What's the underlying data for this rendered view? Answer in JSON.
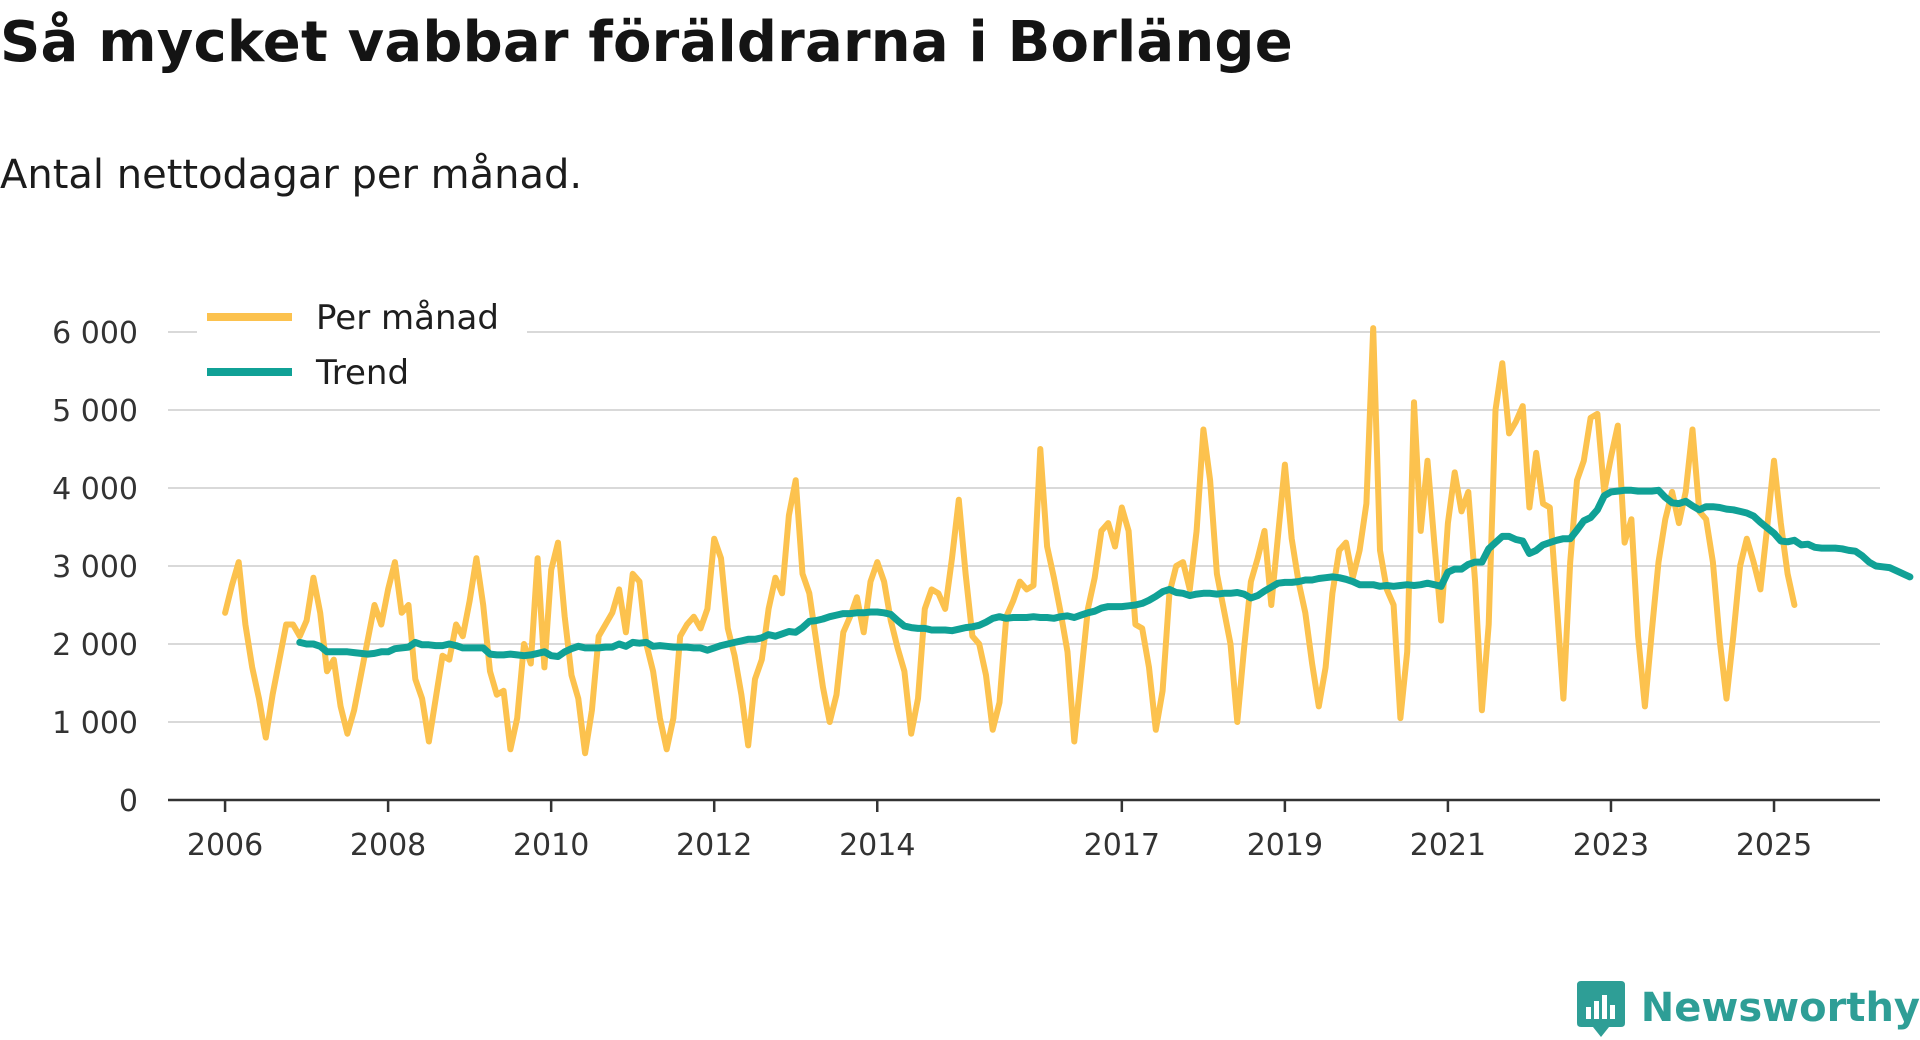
{
  "title": "Så mycket vabbar föräldrarna i Borlänge",
  "subtitle": "Antal nettodagar per månad.",
  "branding": {
    "name": "Newsworthy",
    "icon": "newsworthy-logo-icon",
    "color": "#2e9e96"
  },
  "colors": {
    "per_month": "#fcc24e",
    "trend": "#10a196",
    "grid": "#d9d9d9",
    "axis": "#333333"
  },
  "chart_data": {
    "type": "line",
    "title": "Så mycket vabbar föräldrarna i Borlänge",
    "subtitle": "Antal nettodagar per månad.",
    "xlabel": "",
    "ylabel": "",
    "ylim": [
      0,
      6000
    ],
    "xlim": [
      2005.3,
      2026.3
    ],
    "grid": true,
    "legend_position": "top-left",
    "y_ticks": [
      {
        "value": 0,
        "label": "0"
      },
      {
        "value": 1000,
        "label": "1 000"
      },
      {
        "value": 2000,
        "label": "2 000"
      },
      {
        "value": 3000,
        "label": "3 000"
      },
      {
        "value": 4000,
        "label": "4 000"
      },
      {
        "value": 5000,
        "label": "5 000"
      },
      {
        "value": 6000,
        "label": "6 000"
      }
    ],
    "x_ticks": [
      {
        "value": 2006,
        "label": "2006"
      },
      {
        "value": 2008,
        "label": "2008"
      },
      {
        "value": 2010,
        "label": "2010"
      },
      {
        "value": 2012,
        "label": "2012"
      },
      {
        "value": 2014,
        "label": "2014"
      },
      {
        "value": 2017,
        "label": "2017"
      },
      {
        "value": 2019,
        "label": "2019"
      },
      {
        "value": 2021,
        "label": "2021"
      },
      {
        "value": 2023,
        "label": "2023"
      },
      {
        "value": 2025,
        "label": "2025"
      }
    ],
    "series": [
      {
        "name": "Per månad",
        "key": "per_month",
        "start": 2006.0,
        "step": 0.0833333,
        "values": [
          2400,
          2750,
          3050,
          2250,
          1700,
          1300,
          800,
          1350,
          1800,
          2250,
          2250,
          2100,
          2300,
          2850,
          2400,
          1650,
          1800,
          1200,
          850,
          1150,
          1600,
          2050,
          2500,
          2250,
          2700,
          3050,
          2400,
          2500,
          1550,
          1300,
          750,
          1300,
          1850,
          1800,
          2250,
          2100,
          2550,
          3100,
          2500,
          1650,
          1350,
          1400,
          650,
          1050,
          2000,
          1750,
          3100,
          1700,
          2950,
          3300,
          2350,
          1600,
          1300,
          600,
          1150,
          2100,
          2250,
          2400,
          2700,
          2150,
          2900,
          2800,
          2000,
          1650,
          1050,
          650,
          1050,
          2100,
          2250,
          2350,
          2200,
          2450,
          3350,
          3100,
          2200,
          1850,
          1350,
          700,
          1550,
          1800,
          2450,
          2850,
          2650,
          3650,
          4100,
          2900,
          2650,
          2050,
          1450,
          1000,
          1350,
          2150,
          2350,
          2600,
          2150,
          2800,
          3050,
          2800,
          2300,
          1950,
          1650,
          850,
          1300,
          2450,
          2700,
          2650,
          2450,
          3100,
          3850,
          2900,
          2100,
          2000,
          1600,
          900,
          1250,
          2350,
          2550,
          2800,
          2700,
          2750,
          4500,
          3250,
          2850,
          2400,
          1900,
          750,
          1600,
          2450,
          2850,
          3450,
          3550,
          3250,
          3750,
          3450,
          2250,
          2200,
          1700,
          900,
          1400,
          2650,
          3000,
          3050,
          2700,
          3450,
          4750,
          4100,
          2900,
          2450,
          2000,
          1000,
          1950,
          2800,
          3100,
          3450,
          2500,
          3400,
          4300,
          3350,
          2800,
          2400,
          1750,
          1200,
          1700,
          2650,
          3200,
          3300,
          2850,
          3200,
          3800,
          6050,
          3200,
          2700,
          2500,
          1050,
          1900,
          5100,
          3450,
          4350,
          3300,
          2300,
          3550,
          4200,
          3700,
          3950,
          2800,
          1150,
          2250,
          5000,
          5600,
          4700,
          4850,
          5050,
          3750,
          4450,
          3800,
          3750,
          2550,
          1300,
          3050,
          4100,
          4350,
          4900,
          4950,
          3950,
          4400,
          4800,
          3300,
          3600,
          2100,
          1200,
          2150,
          3050,
          3600,
          3950,
          3550,
          3950,
          4750,
          3700,
          3600,
          3050,
          2050,
          1300,
          2100,
          3000,
          3350,
          3050,
          2700,
          3500,
          4350,
          3550,
          2900,
          2500
        ]
      },
      {
        "name": "Trend",
        "key": "trend",
        "start": 2006.9167,
        "step": 0.0833333,
        "values": [
          2020,
          2000,
          2000,
          1970,
          1900,
          1900,
          1900,
          1900,
          1890,
          1880,
          1870,
          1880,
          1900,
          1900,
          1940,
          1950,
          1960,
          2020,
          1990,
          1990,
          1980,
          1980,
          2000,
          1980,
          1950,
          1950,
          1950,
          1950,
          1870,
          1860,
          1860,
          1870,
          1860,
          1850,
          1860,
          1880,
          1900,
          1850,
          1840,
          1900,
          1940,
          1970,
          1950,
          1950,
          1950,
          1960,
          1960,
          2000,
          1970,
          2020,
          2010,
          2020,
          1970,
          1980,
          1970,
          1960,
          1960,
          1960,
          1950,
          1950,
          1920,
          1950,
          1980,
          2000,
          2020,
          2040,
          2060,
          2060,
          2080,
          2120,
          2100,
          2130,
          2160,
          2150,
          2210,
          2290,
          2300,
          2320,
          2350,
          2370,
          2390,
          2390,
          2400,
          2400,
          2410,
          2410,
          2400,
          2380,
          2300,
          2230,
          2210,
          2200,
          2200,
          2180,
          2180,
          2180,
          2170,
          2190,
          2210,
          2220,
          2240,
          2280,
          2330,
          2350,
          2330,
          2340,
          2340,
          2340,
          2350,
          2340,
          2340,
          2330,
          2350,
          2360,
          2340,
          2370,
          2400,
          2420,
          2460,
          2480,
          2480,
          2480,
          2490,
          2500,
          2520,
          2560,
          2610,
          2670,
          2700,
          2660,
          2650,
          2620,
          2640,
          2650,
          2650,
          2640,
          2650,
          2650,
          2660,
          2640,
          2590,
          2620,
          2680,
          2730,
          2780,
          2790,
          2790,
          2800,
          2820,
          2820,
          2840,
          2850,
          2860,
          2850,
          2830,
          2800,
          2760,
          2760,
          2760,
          2740,
          2750,
          2740,
          2750,
          2760,
          2750,
          2760,
          2780,
          2760,
          2740,
          2920,
          2960,
          2960,
          3020,
          3050,
          3050,
          3220,
          3300,
          3380,
          3380,
          3340,
          3320,
          3160,
          3200,
          3270,
          3300,
          3330,
          3350,
          3350,
          3460,
          3580,
          3620,
          3720,
          3900,
          3950,
          3960,
          3970,
          3970,
          3960,
          3960,
          3960,
          3970,
          3880,
          3810,
          3800,
          3830,
          3770,
          3720,
          3760,
          3760,
          3750,
          3730,
          3720,
          3700,
          3680,
          3640,
          3560,
          3490,
          3420,
          3320,
          3310,
          3330,
          3270,
          3280,
          3240,
          3230,
          3230,
          3230,
          3220,
          3200,
          3190,
          3130,
          3050,
          3000,
          2990,
          2980,
          2940,
          2900,
          2860
        ]
      }
    ]
  }
}
